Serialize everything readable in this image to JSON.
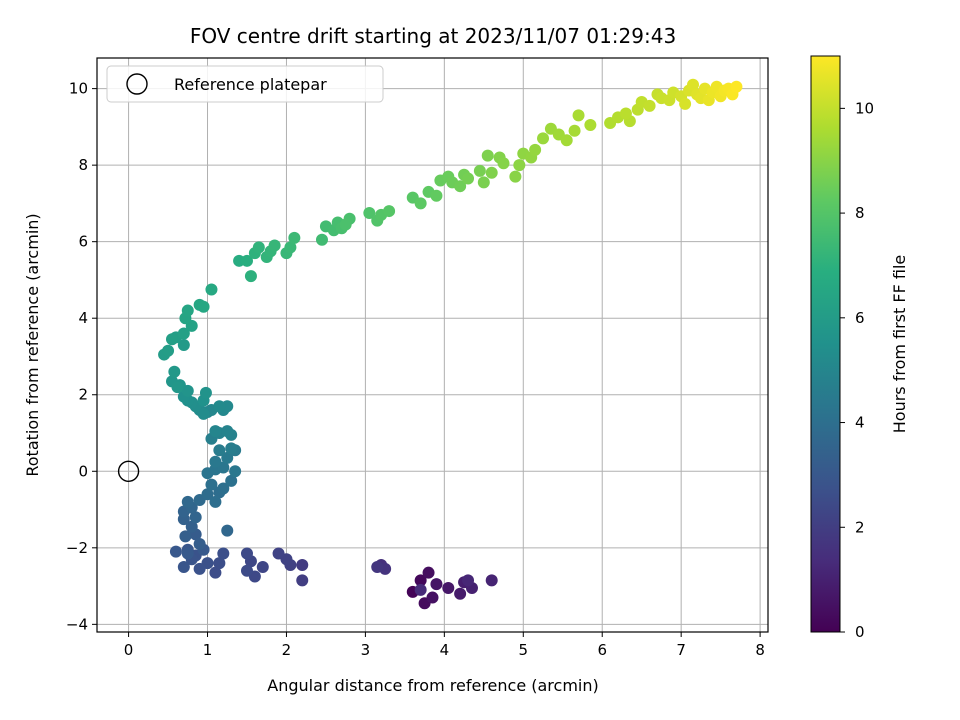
{
  "chart_data": {
    "type": "scatter",
    "title": "FOV centre drift starting at 2023/11/07 01:29:43",
    "xlabel": "Angular distance from reference (arcmin)",
    "ylabel": "Rotation from reference (arcmin)",
    "xlim": [
      -0.4,
      8.1
    ],
    "ylim": [
      -4.2,
      10.8
    ],
    "xticks": [
      0,
      1,
      2,
      3,
      4,
      5,
      6,
      7,
      8
    ],
    "yticks": [
      -4,
      -2,
      0,
      2,
      4,
      6,
      8,
      10
    ],
    "grid": true,
    "colormap": "viridis",
    "colorbar": {
      "label": "Hours from first FF file",
      "range": [
        0,
        11
      ],
      "ticks": [
        0,
        2,
        4,
        6,
        8,
        10
      ]
    },
    "legend": {
      "placement": "top-left",
      "entries": [
        {
          "label": "Reference platepar",
          "marker": "open-circle"
        }
      ]
    },
    "reference_point": {
      "x": 0,
      "y": 0
    },
    "series": [
      {
        "points": [
          [
            3.6,
            -3.15,
            0.1
          ],
          [
            3.7,
            -2.85,
            0.2
          ],
          [
            3.75,
            -3.45,
            0.3
          ],
          [
            3.8,
            -2.65,
            0.4
          ],
          [
            3.85,
            -3.3,
            0.5
          ],
          [
            3.9,
            -2.95,
            0.6
          ],
          [
            4.05,
            -3.05,
            0.7
          ],
          [
            4.2,
            -3.2,
            0.8
          ],
          [
            4.25,
            -2.9,
            0.9
          ],
          [
            4.35,
            -3.05,
            1.0
          ],
          [
            4.6,
            -2.85,
            1.1
          ],
          [
            4.3,
            -2.85,
            1.2
          ],
          [
            3.7,
            -3.1,
            1.3
          ],
          [
            3.2,
            -2.45,
            1.5
          ],
          [
            3.25,
            -2.55,
            1.6
          ],
          [
            3.15,
            -2.5,
            1.7
          ],
          [
            2.2,
            -2.45,
            1.9
          ],
          [
            2.2,
            -2.85,
            2.0
          ],
          [
            2.05,
            -2.45,
            2.1
          ],
          [
            2.0,
            -2.3,
            2.15
          ],
          [
            1.9,
            -2.15,
            2.2
          ],
          [
            1.7,
            -2.5,
            2.3
          ],
          [
            1.55,
            -2.35,
            2.35
          ],
          [
            1.6,
            -2.75,
            2.4
          ],
          [
            1.5,
            -2.15,
            2.45
          ],
          [
            1.5,
            -2.6,
            2.5
          ],
          [
            1.1,
            -2.65,
            2.55
          ],
          [
            1.15,
            -2.4,
            2.6
          ],
          [
            1.2,
            -2.15,
            2.65
          ],
          [
            1.0,
            -2.4,
            2.7
          ],
          [
            0.9,
            -2.55,
            2.75
          ],
          [
            0.85,
            -2.2,
            2.8
          ],
          [
            0.8,
            -2.3,
            2.85
          ],
          [
            0.7,
            -2.5,
            2.9
          ],
          [
            0.75,
            -2.05,
            2.95
          ],
          [
            0.6,
            -2.1,
            3.0
          ],
          [
            0.95,
            -2.05,
            3.05
          ],
          [
            0.75,
            -2.15,
            3.1
          ],
          [
            0.85,
            -1.65,
            3.2
          ],
          [
            0.9,
            -1.9,
            3.25
          ],
          [
            0.72,
            -1.7,
            3.3
          ],
          [
            0.8,
            -1.45,
            3.35
          ],
          [
            0.7,
            -1.25,
            3.4
          ],
          [
            0.7,
            -1.05,
            3.5
          ],
          [
            0.85,
            -1.2,
            3.55
          ],
          [
            0.8,
            -0.95,
            3.6
          ],
          [
            1.25,
            -1.55,
            3.65
          ],
          [
            0.75,
            -0.8,
            3.7
          ],
          [
            0.9,
            -0.75,
            3.8
          ],
          [
            1.0,
            -0.6,
            3.85
          ],
          [
            1.15,
            -0.55,
            3.9
          ],
          [
            1.1,
            -0.8,
            3.95
          ],
          [
            1.2,
            -0.45,
            4.0
          ],
          [
            1.05,
            -0.35,
            4.05
          ],
          [
            1.3,
            -0.25,
            4.1
          ],
          [
            1.0,
            -0.05,
            4.2
          ],
          [
            1.1,
            0.05,
            4.25
          ],
          [
            1.2,
            0.1,
            4.3
          ],
          [
            1.35,
            0.0,
            4.35
          ],
          [
            1.1,
            0.25,
            4.4
          ],
          [
            1.25,
            0.35,
            4.45
          ],
          [
            1.35,
            0.55,
            4.5
          ],
          [
            1.15,
            0.55,
            4.55
          ],
          [
            1.3,
            0.6,
            4.6
          ],
          [
            1.05,
            0.85,
            4.7
          ],
          [
            1.15,
            1.0,
            4.8
          ],
          [
            1.3,
            0.95,
            4.85
          ],
          [
            1.25,
            1.05,
            4.9
          ],
          [
            1.1,
            1.05,
            4.95
          ],
          [
            1.0,
            1.55,
            5.0
          ],
          [
            1.05,
            1.6,
            5.05
          ],
          [
            1.2,
            1.6,
            5.1
          ],
          [
            1.25,
            1.7,
            5.15
          ],
          [
            1.15,
            1.7,
            5.2
          ],
          [
            0.9,
            1.6,
            5.25
          ],
          [
            0.95,
            1.5,
            5.3
          ],
          [
            0.85,
            1.7,
            5.35
          ],
          [
            0.8,
            1.8,
            5.4
          ],
          [
            0.75,
            1.85,
            5.45
          ],
          [
            0.7,
            1.95,
            5.5
          ],
          [
            0.95,
            1.85,
            5.55
          ],
          [
            0.98,
            2.05,
            5.6
          ],
          [
            0.75,
            2.1,
            5.65
          ],
          [
            0.65,
            2.25,
            5.7
          ],
          [
            0.55,
            2.35,
            5.75
          ],
          [
            0.62,
            2.2,
            5.8
          ],
          [
            0.58,
            2.6,
            5.85
          ],
          [
            0.7,
            3.3,
            5.95
          ],
          [
            0.45,
            3.05,
            6.0
          ],
          [
            0.5,
            3.15,
            6.05
          ],
          [
            0.6,
            3.5,
            6.1
          ],
          [
            0.55,
            3.45,
            6.15
          ],
          [
            0.7,
            3.6,
            6.2
          ],
          [
            0.8,
            3.8,
            6.3
          ],
          [
            0.72,
            4.0,
            6.4
          ],
          [
            0.75,
            4.2,
            6.45
          ],
          [
            0.9,
            4.35,
            6.5
          ],
          [
            0.95,
            4.3,
            6.55
          ],
          [
            1.05,
            4.75,
            6.6
          ],
          [
            1.4,
            5.5,
            6.8
          ],
          [
            1.5,
            5.5,
            6.9
          ],
          [
            1.55,
            5.1,
            7.0
          ],
          [
            1.6,
            5.7,
            7.05
          ],
          [
            1.65,
            5.85,
            7.1
          ],
          [
            1.75,
            5.6,
            7.15
          ],
          [
            1.8,
            5.75,
            7.2
          ],
          [
            1.85,
            5.9,
            7.25
          ],
          [
            2.0,
            5.7,
            7.3
          ],
          [
            2.05,
            5.85,
            7.35
          ],
          [
            2.1,
            6.1,
            7.4
          ],
          [
            2.45,
            6.05,
            7.5
          ],
          [
            2.5,
            6.4,
            7.55
          ],
          [
            2.6,
            6.3,
            7.6
          ],
          [
            2.65,
            6.5,
            7.65
          ],
          [
            2.7,
            6.35,
            7.7
          ],
          [
            2.8,
            6.6,
            7.75
          ],
          [
            2.75,
            6.45,
            7.8
          ],
          [
            3.05,
            6.75,
            7.9
          ],
          [
            3.15,
            6.55,
            7.95
          ],
          [
            3.2,
            6.7,
            8.0
          ],
          [
            3.3,
            6.8,
            8.05
          ],
          [
            3.6,
            7.15,
            8.1
          ],
          [
            3.7,
            7.0,
            8.2
          ],
          [
            3.8,
            7.3,
            8.25
          ],
          [
            3.9,
            7.2,
            8.3
          ],
          [
            3.95,
            7.6,
            8.4
          ],
          [
            4.05,
            7.7,
            8.45
          ],
          [
            4.1,
            7.55,
            8.5
          ],
          [
            4.2,
            7.45,
            8.55
          ],
          [
            4.25,
            7.75,
            8.6
          ],
          [
            4.3,
            7.65,
            8.65
          ],
          [
            4.45,
            7.85,
            8.7
          ],
          [
            4.5,
            7.55,
            8.75
          ],
          [
            4.55,
            8.25,
            8.8
          ],
          [
            4.6,
            7.8,
            8.85
          ],
          [
            4.7,
            8.2,
            8.9
          ],
          [
            4.75,
            8.05,
            8.95
          ],
          [
            4.9,
            7.7,
            9.0
          ],
          [
            4.95,
            8.0,
            9.05
          ],
          [
            5.0,
            8.3,
            9.1
          ],
          [
            5.1,
            8.2,
            9.15
          ],
          [
            5.15,
            8.4,
            9.2
          ],
          [
            5.25,
            8.7,
            9.3
          ],
          [
            5.35,
            8.95,
            9.35
          ],
          [
            5.45,
            8.8,
            9.4
          ],
          [
            5.55,
            8.65,
            9.45
          ],
          [
            5.65,
            8.9,
            9.5
          ],
          [
            5.7,
            9.3,
            9.55
          ],
          [
            5.85,
            9.05,
            9.6
          ],
          [
            6.1,
            9.1,
            9.7
          ],
          [
            6.2,
            9.25,
            9.75
          ],
          [
            6.35,
            9.15,
            9.8
          ],
          [
            6.3,
            9.35,
            9.85
          ],
          [
            6.45,
            9.45,
            9.9
          ],
          [
            6.5,
            9.65,
            9.95
          ],
          [
            6.6,
            9.55,
            10.0
          ],
          [
            6.7,
            9.85,
            10.05
          ],
          [
            6.75,
            9.75,
            10.1
          ],
          [
            6.85,
            9.7,
            10.15
          ],
          [
            6.9,
            9.9,
            10.2
          ],
          [
            7.0,
            9.8,
            10.3
          ],
          [
            7.05,
            9.6,
            10.35
          ],
          [
            7.1,
            9.95,
            10.4
          ],
          [
            7.15,
            10.1,
            10.45
          ],
          [
            7.2,
            9.85,
            10.5
          ],
          [
            7.25,
            9.75,
            10.55
          ],
          [
            7.3,
            10.0,
            10.6
          ],
          [
            7.35,
            9.7,
            10.65
          ],
          [
            7.4,
            9.9,
            10.7
          ],
          [
            7.45,
            10.05,
            10.75
          ],
          [
            7.5,
            9.8,
            10.8
          ],
          [
            7.55,
            9.95,
            10.85
          ],
          [
            7.6,
            10.0,
            10.9
          ],
          [
            7.65,
            9.85,
            10.95
          ],
          [
            7.7,
            10.05,
            11.0
          ]
        ]
      }
    ]
  }
}
